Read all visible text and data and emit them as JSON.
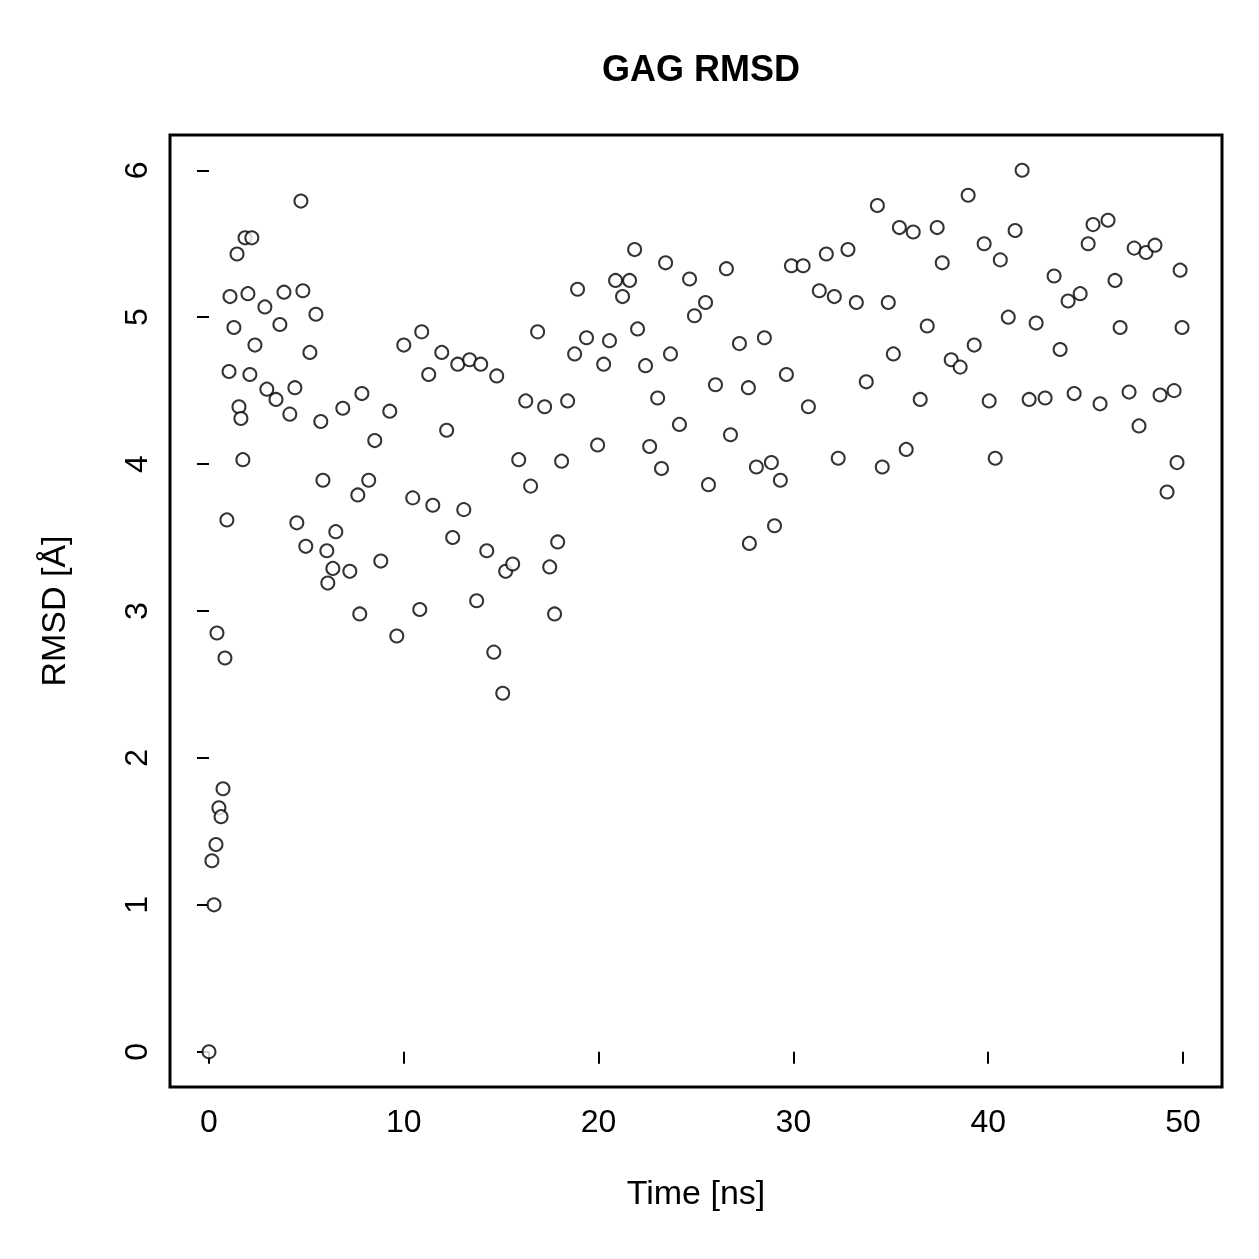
{
  "chart_data": {
    "type": "scatter",
    "title": "GAG RMSD",
    "xlabel": "Time [ns]",
    "ylabel": "RMSD [Å]",
    "xlim": [
      -2,
      52
    ],
    "xticks": [
      0,
      10,
      20,
      30,
      40,
      50
    ],
    "ylim": [
      -0.24,
      6.24
    ],
    "yticks": [
      0,
      1,
      2,
      3,
      4,
      5,
      6
    ],
    "marker": "circle",
    "series": [
      {
        "color": "#000000",
        "x": [
          0,
          0.15,
          0.26,
          0.36,
          0.41,
          0.51,
          0.62,
          0.72,
          0.82,
          0.92,
          1.03,
          1.08,
          1.28,
          1.44,
          1.54,
          1.64,
          1.74,
          1.85,
          2.0,
          2.1,
          2.2,
          2.36,
          2.87,
          2.97,
          3.44,
          3.64,
          3.85,
          4.15,
          4.41,
          4.51,
          4.72,
          4.82,
          4.97,
          5.18,
          5.49,
          5.74,
          5.85,
          6.05,
          6.1,
          6.36,
          6.51,
          6.87,
          7.23,
          7.64,
          7.74,
          7.85,
          8.2,
          8.51,
          8.82,
          9.28,
          9.64,
          10.0,
          10.46,
          10.82,
          10.92,
          11.28,
          11.49,
          11.95,
          12.2,
          12.51,
          12.77,
          13.08,
          13.38,
          13.74,
          13.95,
          14.26,
          14.62,
          14.77,
          15.08,
          15.23,
          15.59,
          15.9,
          16.26,
          16.51,
          16.87,
          17.23,
          17.49,
          17.74,
          17.9,
          18.1,
          18.41,
          18.77,
          18.92,
          19.38,
          19.95,
          20.26,
          20.56,
          20.87,
          21.23,
          21.59,
          21.85,
          22.0,
          22.41,
          22.62,
          23.03,
          23.23,
          23.44,
          23.69,
          24.15,
          24.67,
          24.92,
          25.49,
          25.64,
          26.0,
          26.56,
          26.77,
          27.23,
          27.69,
          27.74,
          28.1,
          28.51,
          28.87,
          29.03,
          29.33,
          29.64,
          29.9,
          30.5,
          30.77,
          31.33,
          31.69,
          32.1,
          32.3,
          32.8,
          33.23,
          33.74,
          34.31,
          34.56,
          34.87,
          35.13,
          35.44,
          35.79,
          36.15,
          36.51,
          36.87,
          37.38,
          37.64,
          38.1,
          38.56,
          38.97,
          39.28,
          39.79,
          40.05,
          40.36,
          40.62,
          41.03,
          41.38,
          41.74,
          42.1,
          42.46,
          42.92,
          43.38,
          43.69,
          44.1,
          44.41,
          44.72,
          45.13,
          45.38,
          45.74,
          46.15,
          46.51,
          46.77,
          47.23,
          47.49,
          47.74,
          48.1,
          48.56,
          48.82,
          49.18,
          49.54,
          49.69,
          49.85,
          49.95
        ],
        "values": [
          0,
          1.3,
          1.0,
          1.41,
          2.85,
          1.66,
          1.6,
          1.79,
          2.68,
          3.62,
          4.63,
          5.14,
          4.93,
          5.43,
          4.39,
          4.31,
          4.03,
          5.54,
          5.16,
          4.61,
          5.54,
          4.81,
          5.07,
          4.51,
          4.44,
          4.95,
          5.17,
          4.34,
          4.52,
          3.6,
          5.79,
          5.18,
          3.44,
          4.76,
          5.02,
          4.29,
          3.89,
          3.41,
          3.19,
          3.29,
          3.54,
          4.38,
          3.27,
          3.79,
          2.98,
          4.48,
          3.89,
          4.16,
          3.34,
          4.36,
          2.83,
          4.81,
          3.77,
          3.01,
          4.9,
          4.61,
          3.72,
          4.76,
          4.23,
          3.5,
          4.68,
          3.69,
          4.71,
          3.07,
          4.68,
          3.41,
          2.72,
          4.6,
          2.44,
          3.27,
          3.32,
          4.03,
          4.43,
          3.85,
          4.9,
          4.39,
          3.3,
          2.98,
          3.47,
          4.02,
          4.43,
          4.75,
          5.19,
          4.86,
          4.13,
          4.68,
          4.84,
          5.25,
          5.14,
          5.25,
          5.46,
          4.92,
          4.67,
          4.12,
          4.45,
          3.97,
          5.37,
          4.75,
          4.27,
          5.26,
          5.01,
          5.1,
          3.86,
          4.54,
          5.33,
          4.2,
          4.82,
          4.52,
          3.46,
          3.98,
          4.86,
          4.01,
          3.58,
          3.89,
          4.61,
          5.35,
          5.35,
          4.39,
          5.18,
          5.43,
          5.14,
          4.04,
          5.46,
          5.1,
          4.56,
          5.76,
          3.98,
          5.1,
          4.75,
          5.61,
          4.1,
          5.58,
          4.44,
          4.94,
          5.61,
          5.37,
          4.71,
          4.66,
          5.83,
          4.81,
          5.5,
          4.43,
          4.04,
          5.39,
          5.0,
          5.59,
          6.0,
          4.44,
          4.96,
          4.45,
          5.28,
          4.78,
          5.11,
          4.48,
          5.16,
          5.5,
          5.63,
          4.41,
          5.66,
          5.25,
          4.93,
          4.49,
          5.47,
          4.26,
          5.44,
          5.49,
          4.47,
          3.81,
          4.5,
          4.01,
          5.32,
          4.93
        ]
      }
    ]
  }
}
